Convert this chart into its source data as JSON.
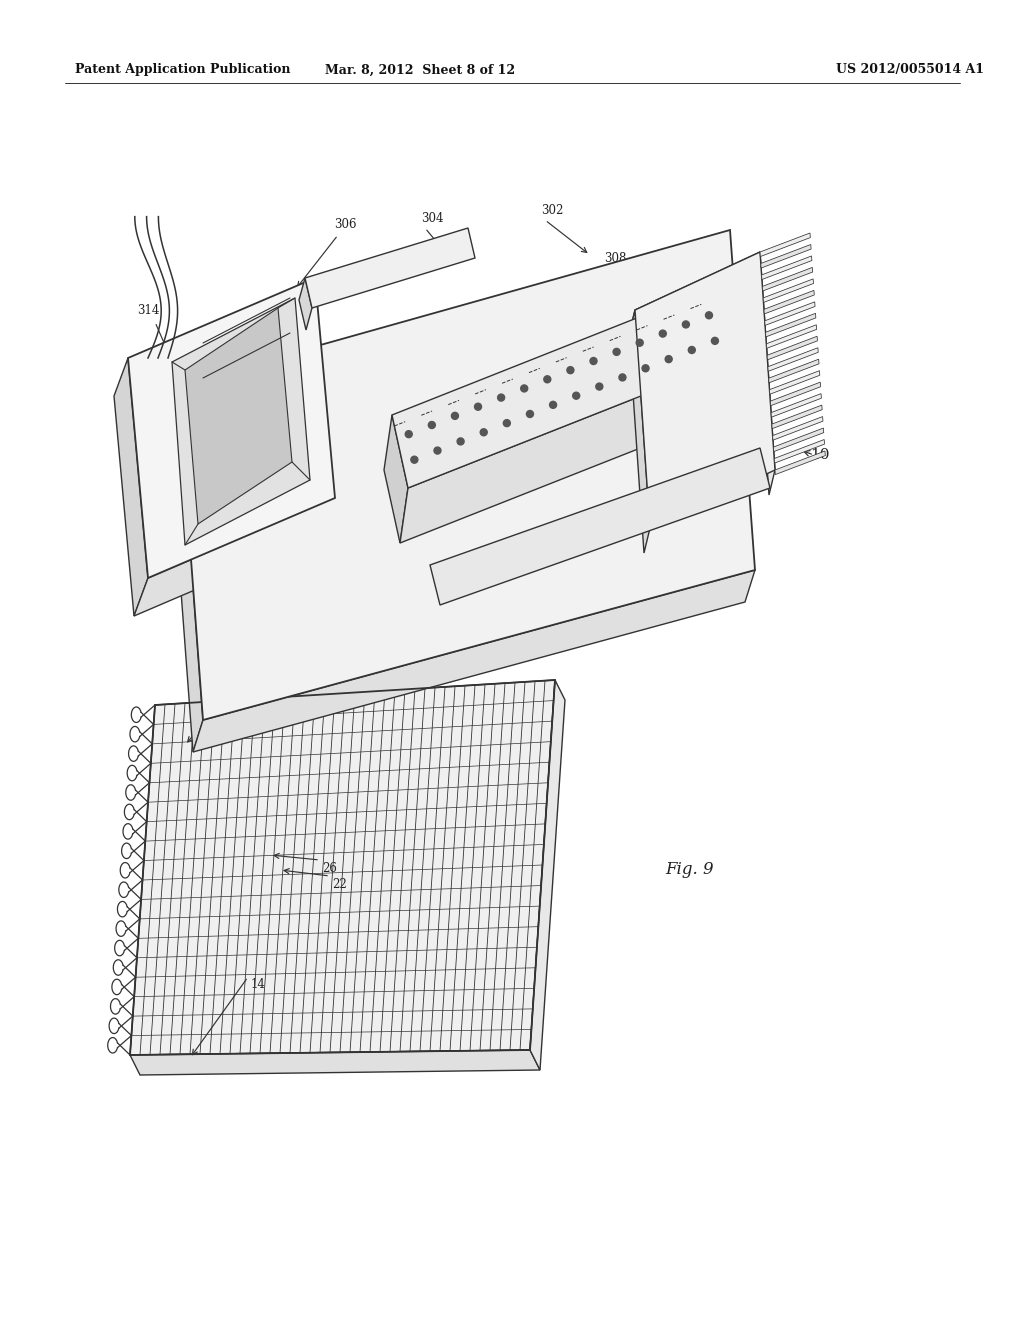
{
  "bg_color": "#ffffff",
  "header_left": "Patent Application Publication",
  "header_mid": "Mar. 8, 2012  Sheet 8 of 12",
  "header_right": "US 2012/0055014 A1",
  "line_color": "#333333",
  "fig_label": "Fig. 9"
}
